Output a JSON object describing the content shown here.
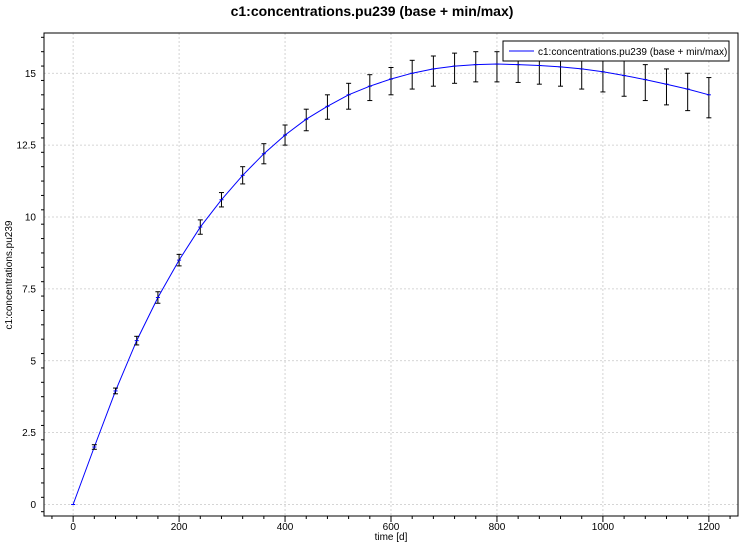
{
  "chart_data": {
    "type": "line",
    "title": "c1:concentrations.pu239 (base + min/max)",
    "xlabel": "time [d]",
    "ylabel": "c1:concentrations.pu239",
    "xlim": [
      -55,
      1255
    ],
    "ylim": [
      -0.4,
      16.4
    ],
    "xticks": [
      0,
      200,
      400,
      600,
      800,
      1000,
      1200
    ],
    "yticks": [
      0,
      2.5,
      5,
      7.5,
      10,
      12.5,
      15
    ],
    "ytick_labels": [
      "0",
      "2.5",
      "5",
      "7.5",
      "10",
      "12.5",
      "15"
    ],
    "grid": true,
    "legend_position": "top-right",
    "series": [
      {
        "name": "c1:concentrations.pu239 (base + min/max)",
        "color": "#0000ff",
        "x": [
          0,
          40,
          80,
          120,
          160,
          200,
          240,
          280,
          320,
          360,
          400,
          440,
          480,
          520,
          560,
          600,
          640,
          680,
          720,
          760,
          800,
          840,
          880,
          920,
          960,
          1000,
          1040,
          1080,
          1120,
          1160,
          1200
        ],
        "y": [
          0,
          2.0,
          3.95,
          5.7,
          7.2,
          8.5,
          9.65,
          10.6,
          11.45,
          12.2,
          12.85,
          13.4,
          13.85,
          14.25,
          14.55,
          14.8,
          15.0,
          15.15,
          15.25,
          15.3,
          15.32,
          15.3,
          15.27,
          15.22,
          15.15,
          15.05,
          14.92,
          14.78,
          14.62,
          14.45,
          14.25
        ],
        "ymin": [
          0,
          1.92,
          3.85,
          5.55,
          7.0,
          8.3,
          9.4,
          10.35,
          11.15,
          11.85,
          12.5,
          13.0,
          13.4,
          13.75,
          14.05,
          14.25,
          14.45,
          14.55,
          14.65,
          14.7,
          14.7,
          14.68,
          14.62,
          14.55,
          14.45,
          14.35,
          14.2,
          14.05,
          13.9,
          13.7,
          13.45
        ],
        "ymax": [
          0,
          2.08,
          4.05,
          5.85,
          7.4,
          8.7,
          9.9,
          10.85,
          11.75,
          12.55,
          13.2,
          13.75,
          14.25,
          14.65,
          14.95,
          15.2,
          15.45,
          15.6,
          15.7,
          15.75,
          15.75,
          15.75,
          15.7,
          15.68,
          15.65,
          15.55,
          15.45,
          15.3,
          15.15,
          15.0,
          14.85
        ]
      }
    ]
  }
}
